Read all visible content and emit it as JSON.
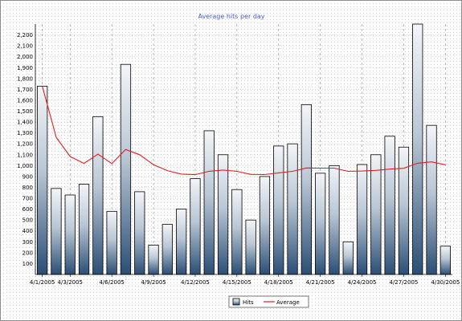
{
  "chart_data": {
    "type": "bar",
    "title": "Average hits per day",
    "xlabel": "",
    "ylabel": "",
    "ylim": [
      0,
      2300
    ],
    "yticks": [
      100,
      200,
      300,
      400,
      500,
      600,
      700,
      800,
      900,
      1000,
      1100,
      1200,
      1300,
      1400,
      1500,
      1600,
      1700,
      1800,
      1900,
      2000,
      2100,
      2200
    ],
    "grid": true,
    "legend": "bottom-center",
    "x": [
      "4/1/2005",
      "4/2/2005",
      "4/3/2005",
      "4/4/2005",
      "4/5/2005",
      "4/6/2005",
      "4/7/2005",
      "4/8/2005",
      "4/9/2005",
      "4/10/2005",
      "4/11/2005",
      "4/12/2005",
      "4/13/2005",
      "4/14/2005",
      "4/15/2005",
      "4/16/2005",
      "4/17/2005",
      "4/18/2005",
      "4/19/2005",
      "4/20/2005",
      "4/21/2005",
      "4/22/2005",
      "4/23/2005",
      "4/24/2005",
      "4/25/2005",
      "4/26/2005",
      "4/27/2005",
      "4/28/2005",
      "4/29/2005",
      "4/30/2005"
    ],
    "x_tick_labels": [
      "4/1/2005",
      "4/3/2005",
      "4/6/2005",
      "4/9/2005",
      "4/12/2005",
      "4/15/2005",
      "4/18/2005",
      "4/21/2005",
      "4/24/2005",
      "4/27/2005",
      "4/30/2005"
    ],
    "series": [
      {
        "name": "Hits",
        "kind": "bar",
        "color": "#2a4e75",
        "values": [
          1730,
          790,
          730,
          830,
          1450,
          580,
          1930,
          760,
          270,
          460,
          600,
          880,
          1320,
          1100,
          780,
          500,
          900,
          1180,
          1200,
          1560,
          930,
          1000,
          300,
          1010,
          1100,
          1270,
          1170,
          2300,
          1370,
          260
        ]
      },
      {
        "name": "Average",
        "kind": "line",
        "color": "#e02020",
        "values": [
          1730,
          1260,
          1083,
          1020,
          1106,
          1018,
          1148,
          1100,
          1008,
          954,
          922,
          917,
          948,
          959,
          947,
          919,
          918,
          933,
          947,
          978,
          977,
          977,
          947,
          950,
          956,
          968,
          975,
          1022,
          1034,
          1008
        ]
      }
    ]
  }
}
